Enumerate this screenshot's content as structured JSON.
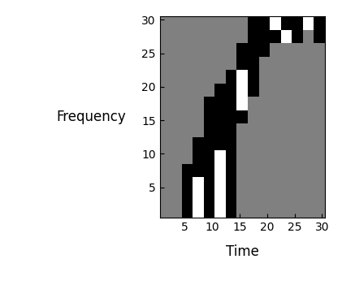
{
  "chart_data": {
    "type": "heatmap",
    "x_label": "Time",
    "y_label": "Frequency",
    "xlim": [
      0.5,
      30.5
    ],
    "ylim": [
      0.5,
      30.5
    ],
    "xticks": [
      5,
      10,
      15,
      20,
      25,
      30
    ],
    "yticks": [
      5,
      10,
      15,
      20,
      25,
      30
    ],
    "x_edges": [
      0.5,
      2.5,
      4.5,
      6.5,
      8.5,
      10.5,
      12.5,
      14.5,
      16.5,
      18.5,
      20.5,
      22.5,
      24.5,
      26.5,
      28.5,
      30.5
    ],
    "y_edges": [
      0.5,
      2.5,
      4.5,
      6.5,
      8.5,
      10.5,
      12.5,
      14.5,
      16.5,
      18.5,
      20.5,
      22.5,
      24.5,
      26.5,
      28.5,
      30.5
    ],
    "color_range": [
      0,
      1
    ],
    "color": "gray",
    "cells": [
      [
        0.5,
        0.5,
        0,
        1,
        0,
        1,
        0,
        0.5,
        0.5,
        0.5,
        0.5,
        0.5,
        0.5,
        0.5,
        0.5
      ],
      [
        0.5,
        0.5,
        0,
        1,
        0,
        1,
        0,
        0.5,
        0.5,
        0.5,
        0.5,
        0.5,
        0.5,
        0.5,
        0.5
      ],
      [
        0.5,
        0.5,
        0,
        1,
        0,
        1,
        0,
        0.5,
        0.5,
        0.5,
        0.5,
        0.5,
        0.5,
        0.5,
        0.5
      ],
      [
        0.5,
        0.5,
        0,
        0,
        0,
        1,
        0,
        0.5,
        0.5,
        0.5,
        0.5,
        0.5,
        0.5,
        0.5,
        0.5
      ],
      [
        0.5,
        0.5,
        0.5,
        0,
        0,
        1,
        0,
        0.5,
        0.5,
        0.5,
        0.5,
        0.5,
        0.5,
        0.5,
        0.5
      ],
      [
        0.5,
        0.5,
        0.5,
        0,
        0,
        0,
        0,
        0.5,
        0.5,
        0.5,
        0.5,
        0.5,
        0.5,
        0.5,
        0.5
      ],
      [
        0.5,
        0.5,
        0.5,
        0.5,
        0,
        0,
        0,
        0.5,
        0.5,
        0.5,
        0.5,
        0.5,
        0.5,
        0.5,
        0.5
      ],
      [
        0.5,
        0.5,
        0.5,
        0.5,
        0,
        0,
        0,
        0,
        0.5,
        0.5,
        0.5,
        0.5,
        0.5,
        0.5,
        0.5
      ],
      [
        0.5,
        0.5,
        0.5,
        0.5,
        0,
        0,
        0,
        1,
        0.5,
        0.5,
        0.5,
        0.5,
        0.5,
        0.5,
        0.5
      ],
      [
        0.5,
        0.5,
        0.5,
        0.5,
        0.5,
        0,
        0,
        1,
        0,
        0.5,
        0.5,
        0.5,
        0.5,
        0.5,
        0.5
      ],
      [
        0.5,
        0.5,
        0.5,
        0.5,
        0.5,
        0.5,
        0,
        1,
        0,
        0.5,
        0.5,
        0.5,
        0.5,
        0.5,
        0.5
      ],
      [
        0.5,
        0.5,
        0.5,
        0.5,
        0.5,
        0.5,
        0.5,
        0,
        0,
        0.5,
        0.5,
        0.5,
        0.5,
        0.5,
        0.5
      ],
      [
        0.5,
        0.5,
        0.5,
        0.5,
        0.5,
        0.5,
        0.5,
        0,
        0,
        0,
        0.5,
        0.5,
        0.5,
        0.5,
        0.5
      ],
      [
        0.5,
        0.5,
        0.5,
        0.5,
        0.5,
        0.5,
        0.5,
        0.5,
        0,
        0,
        0,
        1,
        0,
        0.5,
        0
      ],
      [
        0.5,
        0.5,
        0.5,
        0.5,
        0.5,
        0.5,
        0.5,
        0.5,
        0,
        0,
        1,
        0,
        0,
        1,
        0
      ]
    ]
  }
}
